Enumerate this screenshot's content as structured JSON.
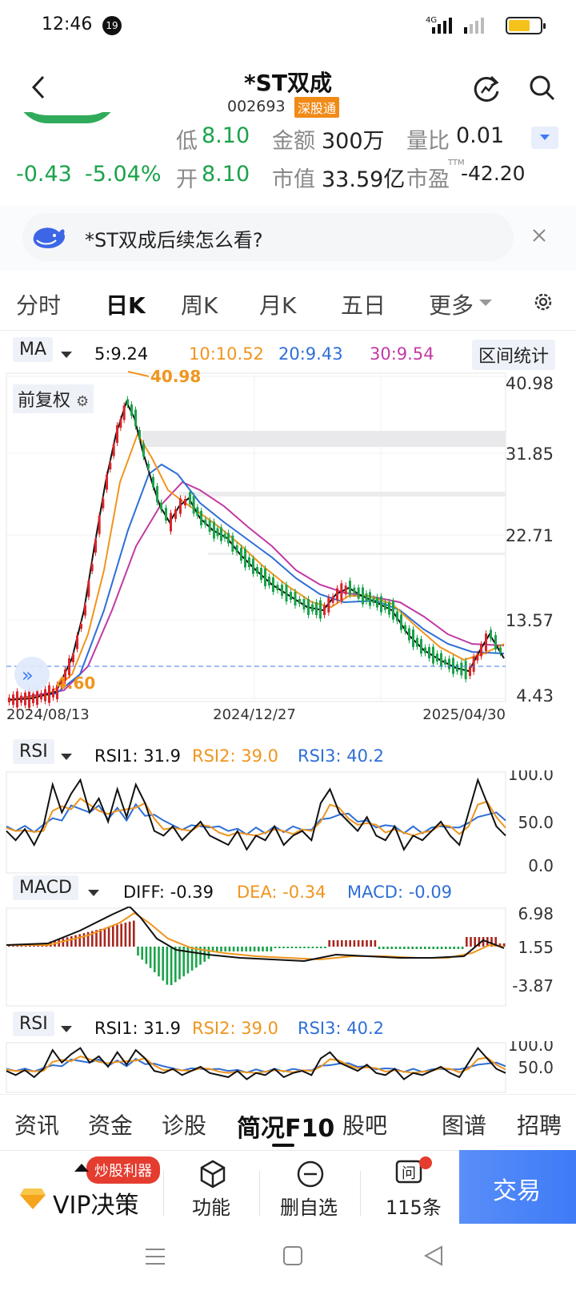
{
  "status": {
    "time": "12:46",
    "notif_count": "19"
  },
  "header": {
    "title": "*ST双成",
    "code": "002693",
    "tag": "深股通"
  },
  "quote": {
    "change": "-0.43",
    "change_pct": "-5.04%",
    "low_label": "低",
    "low": "8.10",
    "open_label": "开",
    "open": "8.10",
    "amount_label": "金额",
    "amount": "300万",
    "mktcap_label": "市值",
    "mktcap": "33.59亿",
    "vol_ratio_label": "量比",
    "vol_ratio": "0.01",
    "pe_label": "市盈",
    "pe_sup": "TTM",
    "pe": "-42.20"
  },
  "ai": {
    "question": "*ST双成后续怎么看?"
  },
  "tabs": [
    "分时",
    "日K",
    "周K",
    "月K",
    "五日",
    "更多"
  ],
  "ma": {
    "label": "MA",
    "ma5": "5:9.24",
    "ma10": "10:10.52",
    "ma20": "20:9.43",
    "ma30": "30:9.54",
    "range_btn": "区间统计"
  },
  "kline": {
    "adjust_label": "前复权",
    "high_mark": "40.98",
    "low_mark": "4.60",
    "y_ticks": [
      "40.98",
      "31.85",
      "22.71",
      "13.57",
      "4.43"
    ],
    "x_labels": [
      "2024/08/13",
      "2024/12/27",
      "2025/04/30"
    ]
  },
  "rsi": {
    "label": "RSI",
    "rsi1": "RSI1: 31.9",
    "rsi2": "RSI2: 39.0",
    "rsi3": "RSI3: 40.2",
    "y_ticks": [
      "100.0",
      "50.0",
      "0.0"
    ]
  },
  "macd": {
    "label": "MACD",
    "diff": "DIFF: -0.39",
    "dea": "DEA: -0.34",
    "macd": "MACD: -0.09",
    "y_ticks": [
      "6.98",
      "1.55",
      "-3.87"
    ]
  },
  "rsi2": {
    "label": "RSI",
    "rsi1": "RSI1: 31.9",
    "rsi2": "RSI2: 39.0",
    "rsi3": "RSI3: 40.2",
    "y_ticks": [
      "100.0",
      "50.0"
    ]
  },
  "bottom_tabs": [
    "资讯",
    "资金",
    "诊股",
    "简况F10",
    "股吧",
    "图谱",
    "招聘"
  ],
  "toolbar": {
    "vip": "VIP决策",
    "vip_badge": "炒股利器",
    "func": "功能",
    "remove": "删自选",
    "qa": "115条",
    "trade": "交易"
  },
  "colors": {
    "up": "#d9262b",
    "down": "#1aa34a",
    "ma5": "#111111",
    "ma10": "#f0951e",
    "ma20": "#2e6fd6",
    "ma30": "#c23aa4",
    "accent": "#3d7bf7"
  }
}
